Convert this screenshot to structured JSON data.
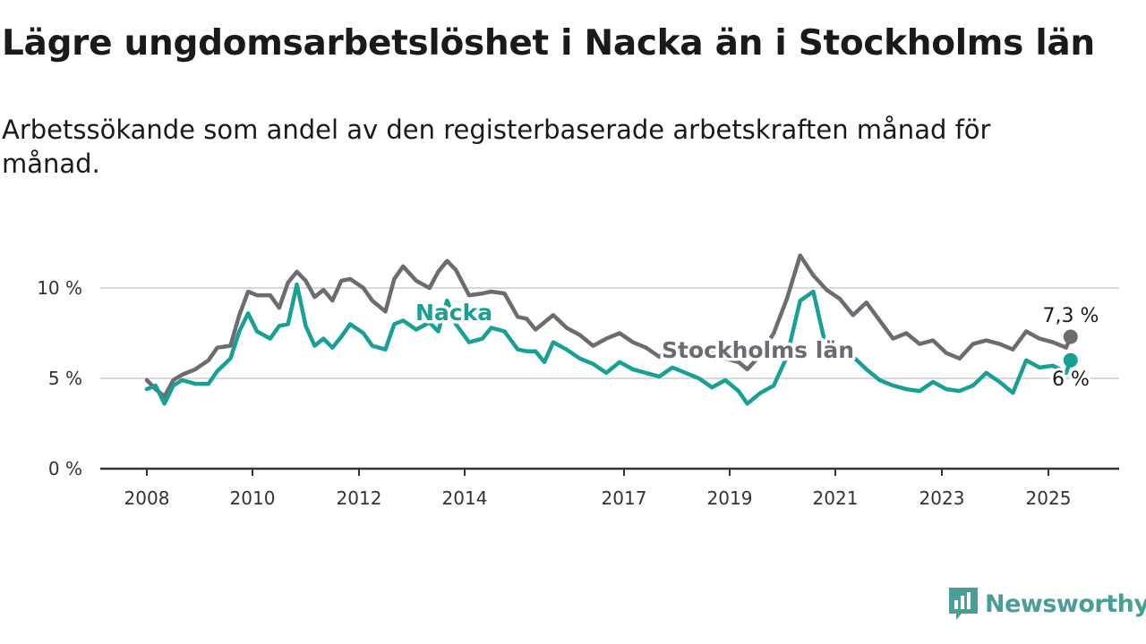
{
  "title": "Lägre ungdomsarbetslöshet i Nacka än i Stockholms län",
  "subtitle": "Arbetssökande som andel av den registerbaserade arbetskraften månad för månad.",
  "brand": {
    "name": "Newsworthy",
    "color": "#4a9e98",
    "icon": "bar-chart-speech-bubble-icon"
  },
  "chart_data": {
    "type": "line",
    "x_ticks": [
      "2008",
      "2010",
      "2012",
      "2014",
      "2017",
      "2019",
      "2021",
      "2023",
      "2025"
    ],
    "y_ticks": [
      "0 %",
      "5 %",
      "10 %"
    ],
    "ylim": [
      0,
      12
    ],
    "grid": "horizontal",
    "series": [
      {
        "name": "Stockholms län",
        "color": "#6d6a72",
        "end_label": "7,3 %",
        "points": [
          [
            "2008-01",
            4.9
          ],
          [
            "2008-03",
            4.4
          ],
          [
            "2008-05",
            4.0
          ],
          [
            "2008-07",
            4.9
          ],
          [
            "2008-09",
            5.2
          ],
          [
            "2008-12",
            5.5
          ],
          [
            "2009-03",
            6.0
          ],
          [
            "2009-05",
            6.7
          ],
          [
            "2009-08",
            6.8
          ],
          [
            "2009-10",
            8.5
          ],
          [
            "2009-12",
            9.8
          ],
          [
            "2010-02",
            9.6
          ],
          [
            "2010-05",
            9.6
          ],
          [
            "2010-07",
            8.9
          ],
          [
            "2010-09",
            10.3
          ],
          [
            "2010-11",
            10.9
          ],
          [
            "2011-01",
            10.4
          ],
          [
            "2011-03",
            9.5
          ],
          [
            "2011-05",
            9.9
          ],
          [
            "2011-07",
            9.3
          ],
          [
            "2011-09",
            10.4
          ],
          [
            "2011-11",
            10.5
          ],
          [
            "2012-02",
            10.0
          ],
          [
            "2012-04",
            9.3
          ],
          [
            "2012-07",
            8.7
          ],
          [
            "2012-09",
            10.5
          ],
          [
            "2012-11",
            11.2
          ],
          [
            "2013-02",
            10.4
          ],
          [
            "2013-05",
            10.0
          ],
          [
            "2013-07",
            10.9
          ],
          [
            "2013-09",
            11.5
          ],
          [
            "2013-11",
            11.0
          ],
          [
            "2014-02",
            9.6
          ],
          [
            "2014-05",
            9.7
          ],
          [
            "2014-07",
            9.8
          ],
          [
            "2014-10",
            9.7
          ],
          [
            "2015-01",
            8.4
          ],
          [
            "2015-03",
            8.3
          ],
          [
            "2015-05",
            7.7
          ],
          [
            "2015-07",
            8.1
          ],
          [
            "2015-09",
            8.5
          ],
          [
            "2015-12",
            7.8
          ],
          [
            "2016-03",
            7.4
          ],
          [
            "2016-06",
            6.8
          ],
          [
            "2016-09",
            7.2
          ],
          [
            "2016-12",
            7.5
          ],
          [
            "2017-03",
            7.0
          ],
          [
            "2017-06",
            6.7
          ],
          [
            "2017-09",
            6.2
          ],
          [
            "2017-12",
            6.8
          ],
          [
            "2018-03",
            6.6
          ],
          [
            "2018-06",
            6.2
          ],
          [
            "2018-09",
            6.6
          ],
          [
            "2018-12",
            6.1
          ],
          [
            "2019-03",
            5.9
          ],
          [
            "2019-05",
            5.5
          ],
          [
            "2019-08",
            6.3
          ],
          [
            "2019-11",
            7.5
          ],
          [
            "2020-02",
            9.4
          ],
          [
            "2020-05",
            11.8
          ],
          [
            "2020-08",
            10.7
          ],
          [
            "2020-11",
            9.9
          ],
          [
            "2021-02",
            9.4
          ],
          [
            "2021-05",
            8.5
          ],
          [
            "2021-08",
            9.2
          ],
          [
            "2021-11",
            8.2
          ],
          [
            "2022-02",
            7.2
          ],
          [
            "2022-05",
            7.5
          ],
          [
            "2022-08",
            6.9
          ],
          [
            "2022-11",
            7.1
          ],
          [
            "2023-02",
            6.4
          ],
          [
            "2023-05",
            6.1
          ],
          [
            "2023-08",
            6.9
          ],
          [
            "2023-11",
            7.1
          ],
          [
            "2024-02",
            6.9
          ],
          [
            "2024-05",
            6.6
          ],
          [
            "2024-08",
            7.6
          ],
          [
            "2024-11",
            7.2
          ],
          [
            "2025-02",
            7.0
          ],
          [
            "2025-05",
            6.7
          ],
          [
            "2025-06",
            7.3
          ]
        ]
      },
      {
        "name": "Nacka",
        "color": "#17a093",
        "end_label": "6 %",
        "points": [
          [
            "2008-01",
            4.4
          ],
          [
            "2008-03",
            4.6
          ],
          [
            "2008-05",
            3.6
          ],
          [
            "2008-07",
            4.6
          ],
          [
            "2008-09",
            4.9
          ],
          [
            "2008-12",
            4.7
          ],
          [
            "2009-03",
            4.7
          ],
          [
            "2009-05",
            5.4
          ],
          [
            "2009-08",
            6.1
          ],
          [
            "2009-10",
            7.6
          ],
          [
            "2009-12",
            8.6
          ],
          [
            "2010-02",
            7.6
          ],
          [
            "2010-05",
            7.2
          ],
          [
            "2010-07",
            7.9
          ],
          [
            "2010-09",
            8.0
          ],
          [
            "2010-11",
            10.2
          ],
          [
            "2011-01",
            7.9
          ],
          [
            "2011-03",
            6.8
          ],
          [
            "2011-05",
            7.2
          ],
          [
            "2011-07",
            6.7
          ],
          [
            "2011-09",
            7.3
          ],
          [
            "2011-11",
            8.0
          ],
          [
            "2012-02",
            7.5
          ],
          [
            "2012-04",
            6.8
          ],
          [
            "2012-07",
            6.6
          ],
          [
            "2012-09",
            8.0
          ],
          [
            "2012-11",
            8.2
          ],
          [
            "2013-02",
            7.7
          ],
          [
            "2013-05",
            8.1
          ],
          [
            "2013-07",
            7.6
          ],
          [
            "2013-09",
            9.3
          ],
          [
            "2013-11",
            8.0
          ],
          [
            "2014-02",
            7.0
          ],
          [
            "2014-05",
            7.2
          ],
          [
            "2014-07",
            7.8
          ],
          [
            "2014-10",
            7.6
          ],
          [
            "2015-01",
            6.6
          ],
          [
            "2015-03",
            6.5
          ],
          [
            "2015-05",
            6.5
          ],
          [
            "2015-07",
            5.9
          ],
          [
            "2015-09",
            7.0
          ],
          [
            "2015-12",
            6.6
          ],
          [
            "2016-03",
            6.1
          ],
          [
            "2016-06",
            5.8
          ],
          [
            "2016-09",
            5.3
          ],
          [
            "2016-12",
            5.9
          ],
          [
            "2017-03",
            5.5
          ],
          [
            "2017-06",
            5.3
          ],
          [
            "2017-09",
            5.1
          ],
          [
            "2017-12",
            5.6
          ],
          [
            "2018-03",
            5.3
          ],
          [
            "2018-06",
            5.0
          ],
          [
            "2018-09",
            4.5
          ],
          [
            "2018-12",
            4.9
          ],
          [
            "2019-03",
            4.3
          ],
          [
            "2019-05",
            3.6
          ],
          [
            "2019-08",
            4.2
          ],
          [
            "2019-11",
            4.6
          ],
          [
            "2020-02",
            6.2
          ],
          [
            "2020-05",
            9.3
          ],
          [
            "2020-08",
            9.8
          ],
          [
            "2020-11",
            6.6
          ],
          [
            "2021-02",
            6.3
          ],
          [
            "2021-05",
            6.2
          ],
          [
            "2021-08",
            5.5
          ],
          [
            "2021-11",
            4.9
          ],
          [
            "2022-02",
            4.6
          ],
          [
            "2022-05",
            4.4
          ],
          [
            "2022-08",
            4.3
          ],
          [
            "2022-11",
            4.8
          ],
          [
            "2023-02",
            4.4
          ],
          [
            "2023-05",
            4.3
          ],
          [
            "2023-08",
            4.6
          ],
          [
            "2023-11",
            5.3
          ],
          [
            "2024-02",
            4.8
          ],
          [
            "2024-05",
            4.2
          ],
          [
            "2024-08",
            6.0
          ],
          [
            "2024-11",
            5.6
          ],
          [
            "2025-02",
            5.7
          ],
          [
            "2025-05",
            5.3
          ],
          [
            "2025-06",
            6.0
          ]
        ]
      }
    ]
  }
}
